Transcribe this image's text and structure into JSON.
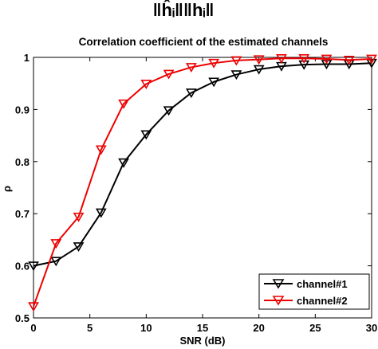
{
  "header_formula": "‖ĥᵢ‖‖hᵢ‖",
  "chart_data": {
    "type": "line",
    "title": "Correlation coefficient of the estimated channels",
    "xlabel": "SNR (dB)",
    "ylabel": "ρ",
    "xlim": [
      0,
      30
    ],
    "ylim": [
      0.5,
      1
    ],
    "xticks": [
      0,
      5,
      10,
      15,
      20,
      25,
      30
    ],
    "xtick_labels": [
      "0",
      "5",
      "10",
      "15",
      "20",
      "25",
      "30"
    ],
    "yticks": [
      0.5,
      0.6,
      0.7,
      0.8,
      0.9,
      1
    ],
    "ytick_labels": [
      "0.5",
      "0.6",
      "0.7",
      "0.8",
      "0.9",
      "1"
    ],
    "grid": false,
    "legend_position": "bottom-right",
    "x": [
      0,
      2,
      4,
      6,
      8,
      10,
      12,
      14,
      16,
      18,
      20,
      22,
      24,
      26,
      28,
      30
    ],
    "series": [
      {
        "name": "channel#1",
        "color": "#000000",
        "marker": "down-triangle",
        "values": [
          0.6,
          0.609,
          0.637,
          0.702,
          0.798,
          0.852,
          0.898,
          0.932,
          0.953,
          0.967,
          0.977,
          0.983,
          0.986,
          0.987,
          0.987,
          0.989
        ]
      },
      {
        "name": "channel#2",
        "color": "#ee0000",
        "marker": "down-triangle",
        "values": [
          0.522,
          0.643,
          0.694,
          0.823,
          0.911,
          0.949,
          0.968,
          0.981,
          0.989,
          0.994,
          0.996,
          0.998,
          0.998,
          0.997,
          0.995,
          0.997
        ]
      }
    ]
  }
}
